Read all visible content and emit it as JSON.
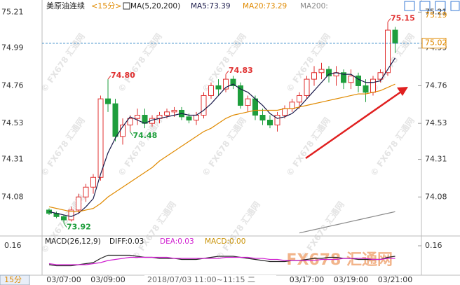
{
  "chart_data": {
    "type": "candlestick",
    "title": "美原油连续",
    "period": "<15分>",
    "ma_label": "MA(5,20,200)",
    "ma_values": [
      "MA5:73.39",
      "MA20:73.29",
      "MA200:"
    ],
    "categories": [
      null,
      null,
      "03/07:00",
      null,
      null,
      null,
      null,
      null,
      "03/09:00",
      null,
      null,
      null,
      null,
      null,
      null,
      null,
      null,
      null,
      null,
      null,
      null,
      null,
      null,
      null,
      null,
      null,
      null,
      null,
      null,
      null,
      null,
      null,
      null,
      null,
      null,
      "03/17:00",
      null,
      null,
      null,
      null,
      null,
      "03/19:00",
      null,
      null,
      null,
      null,
      null,
      "03/21:00"
    ],
    "open": [
      74.0,
      73.98,
      73.96,
      73.94,
      74.0,
      74.08,
      74.14,
      74.2,
      74.68,
      74.65,
      74.45,
      74.52,
      74.56,
      74.58,
      74.53,
      74.56,
      74.58,
      74.6,
      74.61,
      74.57,
      74.55,
      74.58,
      74.7,
      74.76,
      74.74,
      74.8,
      74.76,
      74.64,
      74.68,
      74.58,
      74.55,
      74.52,
      74.58,
      74.62,
      74.66,
      74.7,
      74.8,
      74.84,
      74.86,
      74.82,
      74.84,
      74.78,
      74.82,
      74.76,
      74.72,
      74.8,
      74.84,
      75.1
    ],
    "high": [
      74.01,
      73.99,
      73.97,
      74.02,
      74.1,
      74.16,
      74.22,
      74.7,
      74.8,
      74.68,
      74.56,
      74.58,
      74.62,
      74.62,
      74.58,
      74.6,
      74.62,
      74.63,
      74.63,
      74.59,
      74.6,
      74.72,
      74.78,
      74.8,
      74.83,
      74.82,
      74.78,
      74.7,
      74.7,
      74.62,
      74.58,
      74.6,
      74.64,
      74.68,
      74.72,
      74.82,
      74.88,
      74.9,
      74.88,
      74.88,
      74.86,
      74.86,
      74.84,
      74.8,
      74.82,
      74.86,
      75.15,
      75.12
    ],
    "low": [
      73.97,
      73.95,
      73.92,
      73.93,
      73.98,
      74.05,
      74.1,
      74.18,
      74.6,
      74.42,
      74.4,
      74.48,
      74.52,
      74.5,
      74.51,
      74.53,
      74.56,
      74.57,
      74.55,
      74.53,
      74.52,
      74.56,
      74.68,
      74.7,
      74.72,
      74.74,
      74.62,
      74.6,
      74.55,
      74.52,
      74.5,
      74.48,
      74.56,
      74.6,
      74.62,
      74.68,
      74.76,
      74.8,
      74.78,
      74.76,
      74.74,
      74.74,
      74.72,
      74.66,
      74.7,
      74.78,
      74.82,
      74.96
    ],
    "close": [
      73.98,
      73.96,
      73.94,
      74.0,
      74.08,
      74.14,
      74.2,
      74.68,
      74.65,
      74.45,
      74.52,
      74.56,
      74.58,
      74.53,
      74.56,
      74.58,
      74.6,
      74.61,
      74.57,
      74.55,
      74.58,
      74.7,
      74.76,
      74.74,
      74.8,
      74.76,
      74.64,
      74.68,
      74.58,
      74.55,
      74.52,
      74.58,
      74.62,
      74.66,
      74.7,
      74.8,
      74.84,
      74.86,
      74.82,
      74.84,
      74.78,
      74.82,
      74.76,
      74.72,
      74.8,
      74.84,
      75.1,
      75.02
    ],
    "up_color": "#e03030",
    "down_color": "#1e9e3c",
    "ylim": [
      73.85,
      75.25
    ],
    "yticks": [
      75.21,
      74.99,
      74.76,
      74.53,
      74.31,
      74.08
    ],
    "series": [
      {
        "color": "#1a1a4a",
        "values": [
          73.99,
          73.98,
          73.97,
          73.96,
          73.98,
          74.02,
          74.07,
          74.22,
          74.35,
          74.44,
          74.51,
          74.57,
          74.55,
          74.53,
          74.55,
          74.56,
          74.57,
          74.58,
          74.59,
          74.58,
          74.58,
          74.61,
          74.65,
          74.7,
          74.75,
          74.77,
          74.74,
          74.72,
          74.68,
          74.64,
          74.59,
          74.56,
          74.57,
          74.59,
          74.63,
          74.68,
          74.73,
          74.78,
          74.83,
          74.84,
          74.83,
          74.83,
          74.8,
          74.78,
          74.78,
          74.79,
          74.86,
          74.93
        ]
      },
      {
        "color": "#e08a00",
        "values": [
          74.02,
          74.01,
          74.0,
          73.99,
          73.99,
          74.0,
          74.01,
          74.04,
          74.08,
          74.11,
          74.14,
          74.17,
          74.2,
          74.23,
          74.26,
          74.3,
          74.33,
          74.36,
          74.39,
          74.42,
          74.45,
          74.48,
          74.5,
          74.53,
          74.56,
          74.58,
          74.59,
          74.6,
          74.61,
          74.61,
          74.61,
          74.61,
          74.62,
          74.62,
          74.63,
          74.64,
          74.65,
          74.66,
          74.67,
          74.68,
          74.69,
          74.7,
          74.71,
          74.71,
          74.72,
          74.73,
          74.75,
          74.77
        ]
      },
      {
        "color": "#888888",
        "values": [
          null,
          null,
          null,
          null,
          null,
          null,
          null,
          null,
          null,
          null,
          null,
          null,
          null,
          null,
          null,
          null,
          null,
          null,
          null,
          null,
          null,
          null,
          null,
          null,
          null,
          null,
          null,
          null,
          null,
          null,
          null,
          null,
          null,
          null,
          73.86,
          73.87,
          73.88,
          73.89,
          73.9,
          73.91,
          73.92,
          73.93,
          73.94,
          73.95,
          73.96,
          73.97,
          73.98,
          73.99
        ]
      }
    ],
    "annotations": [
      {
        "value": 74.8,
        "label": "74.80"
      },
      {
        "value": 74.83,
        "label": "74.83"
      },
      {
        "value": 74.48,
        "label": "74.48"
      },
      {
        "value": 73.92,
        "label": "73.92"
      },
      {
        "value": 75.15,
        "label": "75.15"
      }
    ],
    "price_tags": [
      {
        "value": 75.19,
        "label": "75.19"
      },
      {
        "value": 75.02,
        "label": "75.02"
      }
    ],
    "macd": {
      "header": [
        "MACD(26,12,9)",
        "DIFF:0.03",
        "DEA:0.03",
        "MACD:0.00"
      ],
      "ylim": [
        -0.1,
        0.2
      ],
      "yticks": [
        0.16
      ],
      "series": [
        {
          "color": "#222222",
          "values": [
            -0.02,
            -0.03,
            -0.03,
            -0.03,
            -0.02,
            -0.01,
            0.0,
            0.04,
            0.07,
            0.07,
            0.07,
            0.07,
            0.06,
            0.05,
            0.05,
            0.04,
            0.04,
            0.04,
            0.03,
            0.03,
            0.03,
            0.04,
            0.05,
            0.06,
            0.06,
            0.06,
            0.05,
            0.04,
            0.03,
            0.02,
            0.01,
            0.01,
            0.01,
            0.02,
            0.02,
            0.03,
            0.04,
            0.04,
            0.05,
            0.05,
            0.04,
            0.04,
            0.03,
            0.03,
            0.03,
            0.03,
            0.05,
            0.06
          ]
        },
        {
          "color": "#d020d0",
          "values": [
            -0.01,
            -0.02,
            -0.02,
            -0.02,
            -0.02,
            -0.02,
            -0.01,
            0.0,
            0.02,
            0.03,
            0.04,
            0.05,
            0.05,
            0.05,
            0.05,
            0.05,
            0.05,
            0.04,
            0.04,
            0.04,
            0.04,
            0.04,
            0.04,
            0.04,
            0.05,
            0.05,
            0.05,
            0.05,
            0.04,
            0.04,
            0.03,
            0.03,
            0.02,
            0.02,
            0.02,
            0.02,
            0.02,
            0.03,
            0.03,
            0.03,
            0.04,
            0.04,
            0.04,
            0.04,
            0.03,
            0.03,
            0.04,
            0.04
          ]
        }
      ]
    },
    "cursor_time": "2018/07/03 11:00~11:15 二",
    "period_button": "15分",
    "watermark": "© FX678 汇通网",
    "logo": "FX678 汇通网"
  }
}
